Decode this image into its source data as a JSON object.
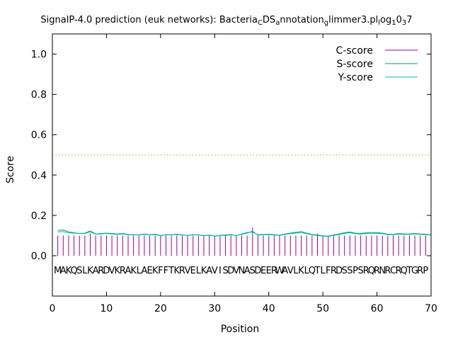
{
  "chart_data": {
    "type": "line",
    "title": "SignalP-4.0 prediction (euk networks): Bacteria",
    "title_segments": [
      {
        "text": "SignalP-4.0 prediction (euk networks): Bacteria",
        "sub": false
      },
      {
        "text": "C",
        "sub": true
      },
      {
        "text": "DS",
        "sub": false
      },
      {
        "text": "a",
        "sub": true
      },
      {
        "text": "nnotation",
        "sub": false
      },
      {
        "text": "g",
        "sub": true
      },
      {
        "text": "limmer3.pl",
        "sub": false
      },
      {
        "text": "l",
        "sub": true
      },
      {
        "text": "og",
        "sub": false
      },
      {
        "text": "1",
        "sub": true
      },
      {
        "text": "0",
        "sub": false
      },
      {
        "text": "3",
        "sub": true
      },
      {
        "text": "7",
        "sub": false
      }
    ],
    "xlabel": "Position",
    "ylabel": "Score",
    "xlim": [
      0,
      70
    ],
    "ylim": [
      -0.2,
      1.1
    ],
    "xticks": [
      "0",
      "10",
      "20",
      "30",
      "40",
      "50",
      "60",
      "70"
    ],
    "yticks": [
      "0.0",
      "0.2",
      "0.4",
      "0.6",
      "0.8",
      "1.0"
    ],
    "threshold": 0.5,
    "legend_position": "top-right",
    "sequence": "MAKQSLKARDVKRAKLAEKFFTKRVELKAVISDVNASDEERWAVLKLQTLFRDSSPSRQRNRCRQTGRP",
    "series": [
      {
        "name": "C-score",
        "color": "#990099",
        "style": "impulse",
        "values": [
          0.1,
          0.1,
          0.1,
          0.1,
          0.1,
          0.1,
          0.11,
          0.1,
          0.1,
          0.1,
          0.1,
          0.1,
          0.1,
          0.1,
          0.1,
          0.1,
          0.1,
          0.1,
          0.1,
          0.1,
          0.1,
          0.1,
          0.1,
          0.1,
          0.1,
          0.1,
          0.1,
          0.1,
          0.1,
          0.1,
          0.1,
          0.1,
          0.1,
          0.1,
          0.1,
          0.1,
          0.14,
          0.1,
          0.1,
          0.1,
          0.1,
          0.1,
          0.1,
          0.1,
          0.1,
          0.1,
          0.1,
          0.1,
          0.11,
          0.1,
          0.1,
          0.1,
          0.1,
          0.1,
          0.1,
          0.1,
          0.1,
          0.1,
          0.1,
          0.1,
          0.1,
          0.1,
          0.1,
          0.1,
          0.1,
          0.1,
          0.1,
          0.1,
          0.1,
          0.1
        ]
      },
      {
        "name": "S-score",
        "color": "#009966",
        "style": "line",
        "values": [
          0.125,
          0.128,
          0.118,
          0.114,
          0.11,
          0.112,
          0.123,
          0.108,
          0.11,
          0.112,
          0.11,
          0.108,
          0.11,
          0.106,
          0.104,
          0.104,
          0.108,
          0.104,
          0.107,
          0.1,
          0.105,
          0.104,
          0.107,
          0.104,
          0.101,
          0.105,
          0.104,
          0.1,
          0.102,
          0.098,
          0.101,
          0.103,
          0.105,
          0.1,
          0.108,
          0.115,
          0.118,
          0.104,
          0.106,
          0.107,
          0.104,
          0.102,
          0.108,
          0.112,
          0.116,
          0.12,
          0.112,
          0.106,
          0.102,
          0.099,
          0.097,
          0.103,
          0.108,
          0.114,
          0.118,
          0.112,
          0.11,
          0.114,
          0.115,
          0.115,
          0.112,
          0.107,
          0.106,
          0.11,
          0.108,
          0.108,
          0.11,
          0.108,
          0.107,
          0.104
        ]
      },
      {
        "name": "Y-score",
        "color": "#00BBBB",
        "style": "line",
        "values": [
          0.118,
          0.12,
          0.114,
          0.112,
          0.11,
          0.11,
          0.118,
          0.107,
          0.108,
          0.11,
          0.108,
          0.106,
          0.108,
          0.104,
          0.103,
          0.103,
          0.106,
          0.103,
          0.105,
          0.099,
          0.104,
          0.103,
          0.105,
          0.103,
          0.1,
          0.104,
          0.103,
          0.099,
          0.101,
          0.097,
          0.1,
          0.101,
          0.103,
          0.1,
          0.106,
          0.112,
          0.122,
          0.102,
          0.104,
          0.105,
          0.102,
          0.101,
          0.106,
          0.109,
          0.112,
          0.115,
          0.109,
          0.104,
          0.1,
          0.097,
          0.095,
          0.101,
          0.105,
          0.11,
          0.114,
          0.109,
          0.107,
          0.11,
          0.111,
          0.111,
          0.109,
          0.105,
          0.104,
          0.107,
          0.106,
          0.106,
          0.108,
          0.106,
          0.105,
          0.103
        ]
      }
    ]
  }
}
